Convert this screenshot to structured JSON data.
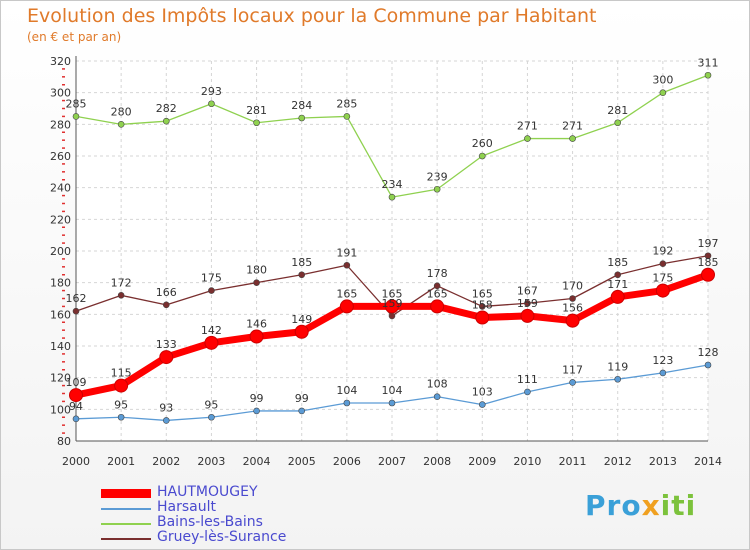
{
  "chart_data": {
    "type": "line",
    "title": "Evolution des Impôts locaux pour la Commune par Habitant",
    "subtitle": "(en € et par an)",
    "xlabel": "",
    "ylabel": "",
    "ylim": [
      80,
      320
    ],
    "yticks": [
      80,
      100,
      120,
      140,
      160,
      180,
      200,
      220,
      240,
      260,
      280,
      300,
      320
    ],
    "categories": [
      "2000",
      "2001",
      "2002",
      "2003",
      "2004",
      "2005",
      "2006",
      "2007",
      "2008",
      "2009",
      "2010",
      "2011",
      "2012",
      "2013",
      "2014"
    ],
    "grid": true,
    "legend_position": "bottom-left",
    "series": [
      {
        "name": "HAUTMOUGEY",
        "color": "#ff0000",
        "values": [
          109,
          115,
          133,
          142,
          146,
          149,
          165,
          165,
          165,
          158,
          159,
          156,
          171,
          175,
          185
        ]
      },
      {
        "name": "Harsault",
        "color": "#5b9bd5",
        "values": [
          94,
          95,
          93,
          95,
          99,
          99,
          104,
          104,
          108,
          103,
          111,
          117,
          119,
          123,
          128
        ]
      },
      {
        "name": "Bains-les-Bains",
        "color": "#8fd14f",
        "values": [
          285,
          280,
          282,
          293,
          281,
          284,
          285,
          234,
          239,
          260,
          271,
          271,
          281,
          300,
          311
        ]
      },
      {
        "name": "Gruey-lès-Surance",
        "color": "#7a2f2f",
        "values": [
          162,
          172,
          166,
          175,
          180,
          185,
          191,
          159,
          178,
          165,
          167,
          170,
          185,
          192,
          197
        ]
      }
    ]
  },
  "brand": {
    "part1": "Pro",
    "part2": "x",
    "part3": "iti"
  }
}
